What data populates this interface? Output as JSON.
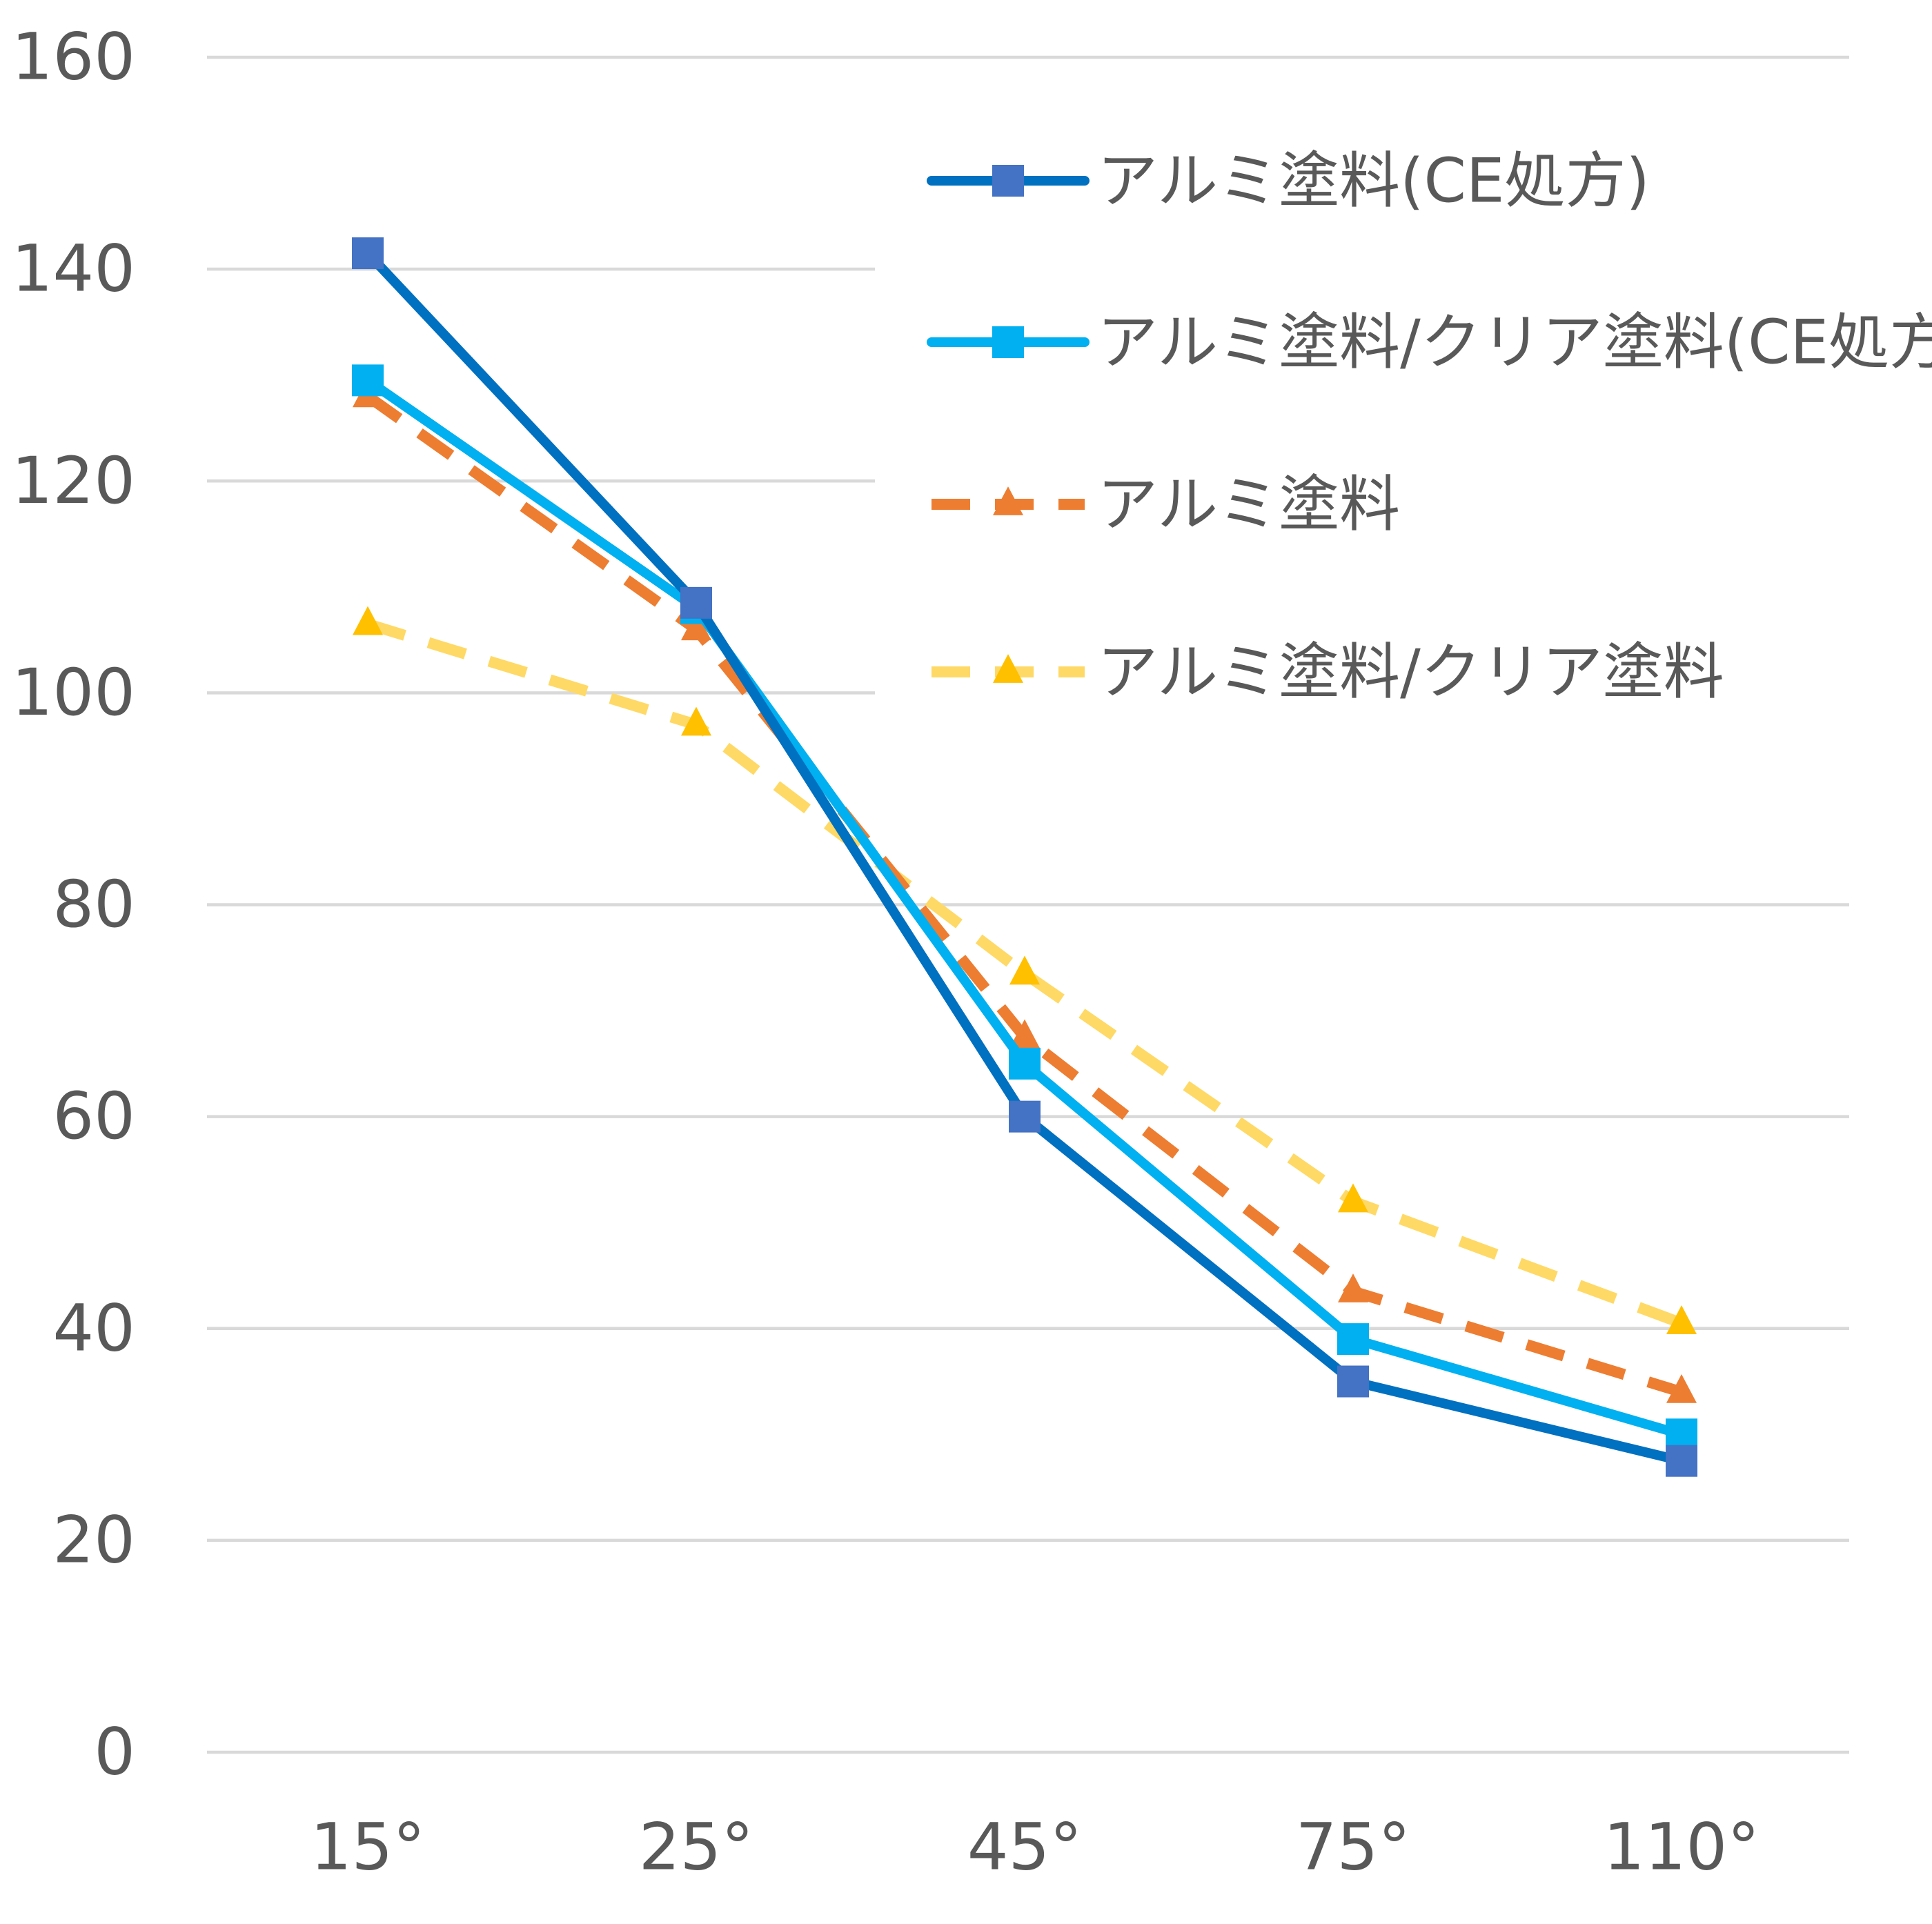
{
  "chart_data": {
    "type": "line",
    "x": [
      "15°",
      "25°",
      "45°",
      "75°",
      "110°"
    ],
    "ylim": [
      0,
      160
    ],
    "yticks": [
      0,
      20,
      40,
      60,
      80,
      100,
      120,
      140,
      160
    ],
    "grid": true,
    "legend_position": "top-right",
    "series": [
      {
        "name": "アルミ塗料(CE処方)",
        "values": [
          141.5,
          108.5,
          60,
          35,
          27.5
        ],
        "line_color": "#0070C0",
        "marker_color": "#4472C4",
        "marker": "square",
        "dashed": false
      },
      {
        "name": "アルミ塗料/クリア塗料(CE処方)",
        "values": [
          129.5,
          108,
          65,
          39,
          30
        ],
        "line_color": "#00B0F0",
        "marker_color": "#00B0F0",
        "marker": "square",
        "dashed": false
      },
      {
        "name": "アルミ塗料",
        "values": [
          128,
          106,
          67.5,
          43.5,
          34
        ],
        "line_color": "#ED7D31",
        "marker_color": "#ED7D31",
        "marker": "triangle",
        "dashed": true
      },
      {
        "name": "アルミ塗料/クリア塗料",
        "values": [
          106.5,
          97,
          73.5,
          52,
          40.5
        ],
        "line_color": "#FFD966",
        "marker_color": "#FFC000",
        "marker": "triangle",
        "dashed": true
      }
    ]
  }
}
